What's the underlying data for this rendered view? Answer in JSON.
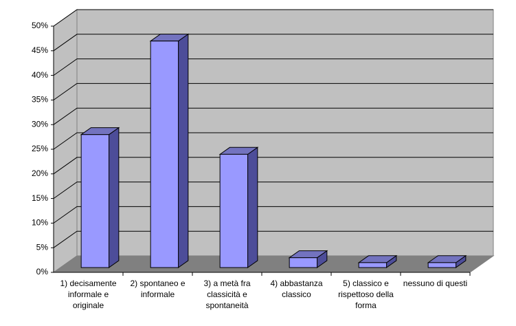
{
  "chart_data": {
    "type": "bar3d",
    "categories": [
      "1) decisamente informale e originale",
      "2) spontaneo e informale",
      "3) a metà fra classicità e spontaneità",
      "4) abbastanza classico",
      "5) classico e rispettoso della forma",
      "nessuno di questi"
    ],
    "values": [
      27,
      46,
      23,
      2,
      1,
      1
    ],
    "color": "#9999ff",
    "ylim": [
      0,
      50
    ],
    "yticks": [
      {
        "value": 0,
        "label": "0%"
      },
      {
        "value": 5,
        "label": "5%"
      },
      {
        "value": 10,
        "label": "10%"
      },
      {
        "value": 15,
        "label": "15%"
      },
      {
        "value": 20,
        "label": "20%"
      },
      {
        "value": 25,
        "label": "25%"
      },
      {
        "value": 30,
        "label": "30%"
      },
      {
        "value": 35,
        "label": "35%"
      },
      {
        "value": 40,
        "label": "40%"
      },
      {
        "value": 45,
        "label": "45%"
      },
      {
        "value": 50,
        "label": "50%"
      }
    ],
    "grid": true
  }
}
